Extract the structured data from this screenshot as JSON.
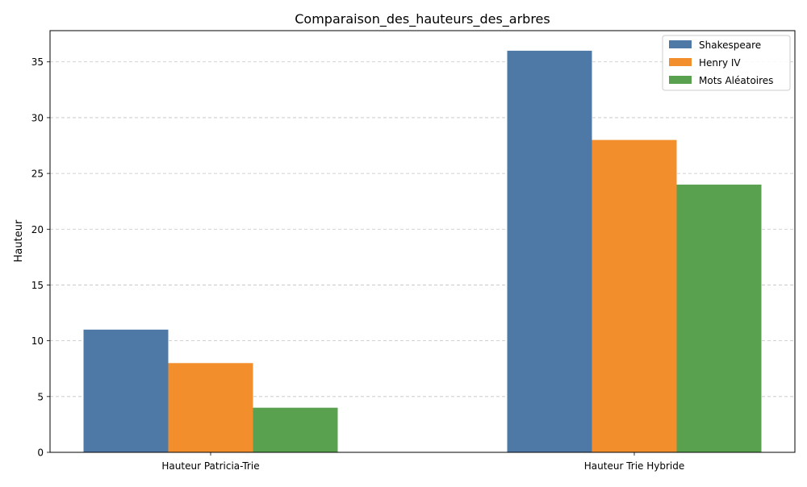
{
  "chart_data": {
    "type": "bar",
    "title": "Comparaison_des_hauteurs_des_arbres",
    "xlabel": "",
    "ylabel": "Hauteur",
    "categories": [
      "Hauteur Patricia-Trie",
      "Hauteur Trie Hybride"
    ],
    "series": [
      {
        "name": "Shakespeare",
        "values": [
          11,
          36
        ],
        "color": "#4e79a7"
      },
      {
        "name": "Henry IV",
        "values": [
          8,
          28
        ],
        "color": "#f28e2b"
      },
      {
        "name": "Mots Aléatoires",
        "values": [
          4,
          24
        ],
        "color": "#59a14f"
      }
    ],
    "ylim": [
      0,
      37.8
    ],
    "yticks": [
      0,
      5,
      10,
      15,
      20,
      25,
      30,
      35
    ],
    "grid": "y-dashed",
    "legend_position": "top-right"
  }
}
